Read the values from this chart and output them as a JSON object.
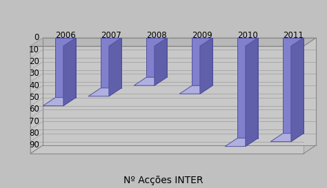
{
  "title": "Nº Acções INTER",
  "categories": [
    "2006",
    "2007",
    "2008",
    "2009",
    "2010",
    "2011"
  ],
  "values": [
    50,
    42,
    33,
    40,
    84,
    80
  ],
  "bar_face_color": "#8080cc",
  "bar_top_color": "#b0b0e0",
  "bar_side_color": "#6060aa",
  "bar_edge_color": "#5050a0",
  "wall_color": "#c8c8c8",
  "wall_left_color": "#b0b0b0",
  "floor_color": "#b8b8b8",
  "bg_color": "#c0c0c0",
  "grid_line_color": "#a8a8a8",
  "ylim": [
    0,
    90
  ],
  "yticks": [
    0,
    10,
    20,
    30,
    40,
    50,
    60,
    70,
    80,
    90
  ],
  "title_fontsize": 10,
  "tick_fontsize": 8.5
}
